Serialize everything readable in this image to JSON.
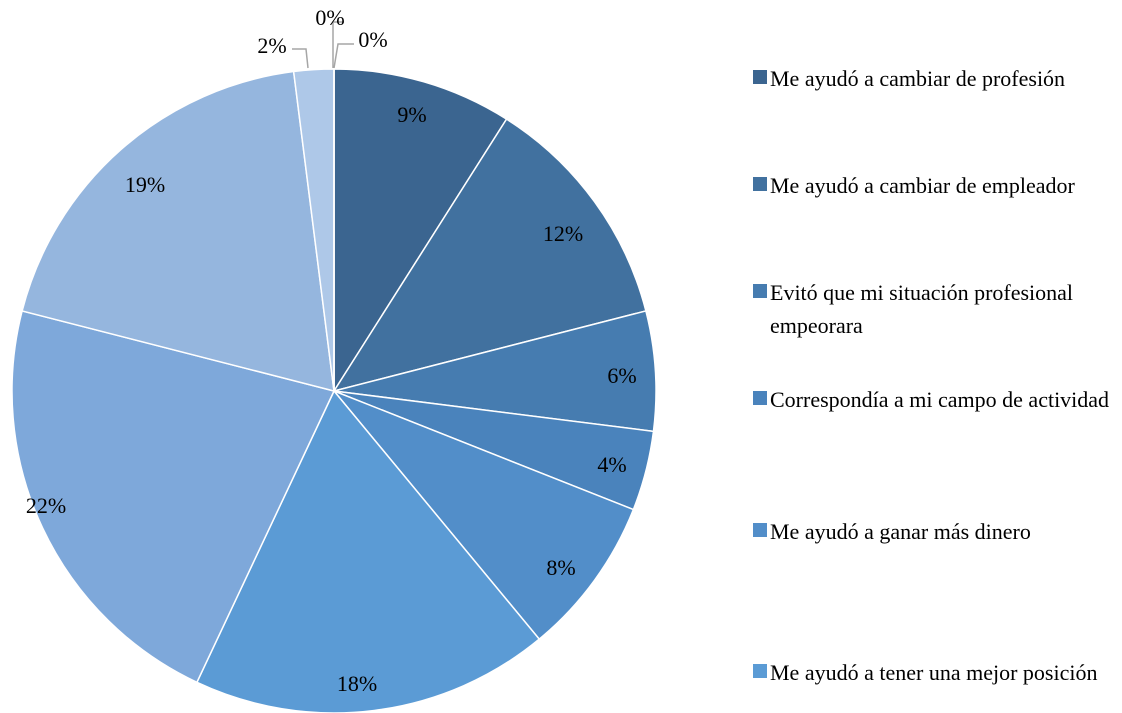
{
  "chart_data": {
    "type": "pie",
    "categories": [
      "Me ayudó a cambiar de profesión",
      "Me ayudó a cambiar de empleador",
      "Evitó que mi situación profesional empeorara",
      "Correspondía a mi campo de actividad",
      "Me ayudó a ganar más dinero",
      "Me ayudó a tener una mejor posición",
      null,
      null,
      null,
      null,
      null
    ],
    "values": [
      9,
      12,
      6,
      4,
      8,
      18,
      22,
      19,
      2,
      0,
      0
    ],
    "value_labels": [
      "9%",
      "12%",
      "6%",
      "4%",
      "8%",
      "18%",
      "22%",
      "19%",
      "2%",
      "0%",
      "0%"
    ],
    "colors": [
      "#3b6590",
      "#41719f",
      "#467cb0",
      "#4a83bc",
      "#528ec9",
      "#5b9bd5",
      "#7ea8da",
      "#95b6de",
      "#aec8e8",
      "#bcd2ec",
      "#c8daf0"
    ],
    "legend": "right"
  }
}
